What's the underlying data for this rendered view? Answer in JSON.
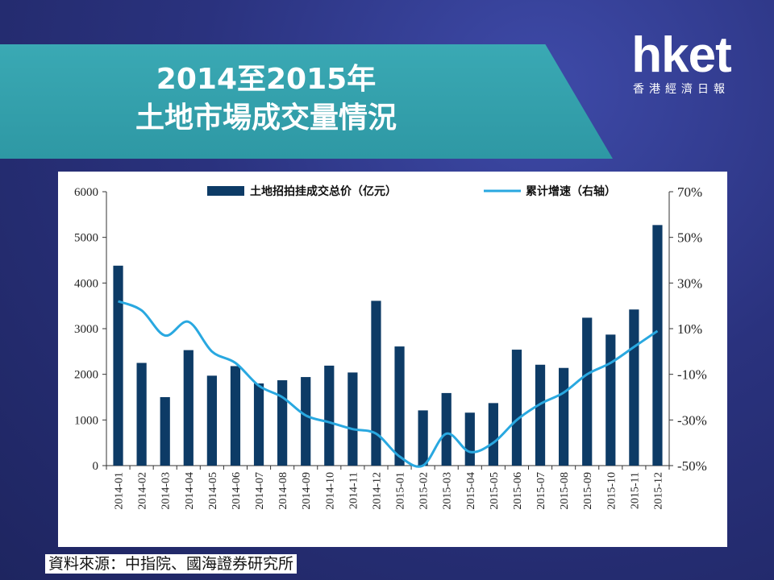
{
  "header": {
    "title_line1": "2014至2015年",
    "title_line2": "土地市場成交量情況"
  },
  "logo": {
    "main": "hket",
    "sub": "香港經濟日報"
  },
  "source": "資料來源：中指院、國海證券研究所",
  "colors": {
    "bar": "#0d3b66",
    "line": "#29a8e0",
    "title_band": "#33a0ac",
    "background": "#262e78"
  },
  "chart_data": {
    "type": "bar",
    "categories": [
      "2014-01",
      "2014-02",
      "2014-03",
      "2014-04",
      "2014-05",
      "2014-06",
      "2014-07",
      "2014-08",
      "2014-09",
      "2014-10",
      "2014-11",
      "2014-12",
      "2015-01",
      "2015-02",
      "2015-03",
      "2015-04",
      "2015-05",
      "2015-06",
      "2015-07",
      "2015-08",
      "2015-09",
      "2015-10",
      "2015-11",
      "2015-12"
    ],
    "series": [
      {
        "name": "土地招拍挂成交总价（亿元）",
        "type": "bar",
        "axis": "left",
        "values": [
          4380,
          2250,
          1500,
          2530,
          1970,
          2180,
          1800,
          1870,
          1940,
          2190,
          2040,
          3610,
          2610,
          1210,
          1590,
          1160,
          1370,
          2540,
          2210,
          2140,
          3240,
          2870,
          3420,
          5270
        ]
      },
      {
        "name": "累计增速（右轴）",
        "type": "line",
        "axis": "right",
        "values": [
          22,
          18,
          7,
          13,
          0,
          -5,
          -15,
          -20,
          -28,
          -31,
          -34,
          -36,
          -46,
          -50,
          -36,
          -44,
          -40,
          -30,
          -23,
          -18,
          -10,
          -5,
          2,
          9
        ]
      }
    ],
    "y_left": {
      "min": 0,
      "max": 6000,
      "ticks": [
        "0",
        "1000",
        "2000",
        "3000",
        "4000",
        "5000",
        "6000"
      ]
    },
    "y_right": {
      "min": -50,
      "max": 70,
      "ticks": [
        "-50%",
        "-30%",
        "-10%",
        "10%",
        "30%",
        "50%",
        "70%"
      ]
    },
    "legend_position": "top",
    "grid": false
  }
}
